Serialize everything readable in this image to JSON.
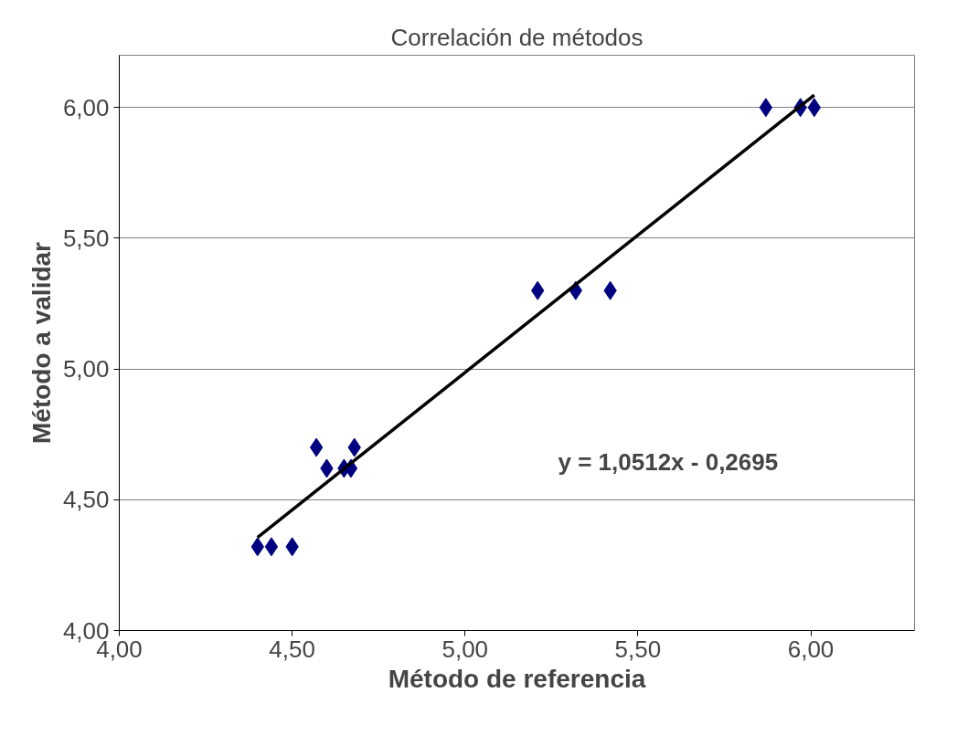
{
  "chart_data": {
    "type": "scatter",
    "title": "Correlación de métodos",
    "xlabel": "Método de referencia",
    "ylabel": "Método a validar",
    "annotations": [
      "y = 1,0512x - 0,2695"
    ],
    "series": [
      {
        "color": "#000080",
        "marker": "diamond",
        "x": [
          4.4,
          4.44,
          4.5,
          4.57,
          4.6,
          4.65,
          4.67,
          4.68,
          5.21,
          5.32,
          5.42,
          5.87,
          5.97,
          6.01
        ],
        "values": [
          4.32,
          4.32,
          4.32,
          4.7,
          4.62,
          4.62,
          4.62,
          4.7,
          5.3,
          5.3,
          5.3,
          6.0,
          6.0,
          6.0
        ]
      },
      {
        "type": "line",
        "color": "#000000",
        "marker": "none",
        "line_style": "solid",
        "x": [
          4.4,
          6.01
        ],
        "values": [
          4.356,
          6.048
        ]
      }
    ],
    "xlim": [
      4.0,
      6.3
    ],
    "ylim": [
      4.0,
      6.2
    ],
    "xticks": [
      {
        "value": 4.0,
        "label": "4,00"
      },
      {
        "value": 4.5,
        "label": "4,50"
      },
      {
        "value": 5.0,
        "label": "5,00"
      },
      {
        "value": 5.5,
        "label": "5,50"
      },
      {
        "value": 6.0,
        "label": "6,00"
      }
    ],
    "yticks": [
      {
        "value": 4.0,
        "label": "4,00"
      },
      {
        "value": 4.5,
        "label": "4,50"
      },
      {
        "value": 5.0,
        "label": "5,00"
      },
      {
        "value": 5.5,
        "label": "5,50"
      },
      {
        "value": 6.0,
        "label": "6,00"
      }
    ],
    "grid": "y"
  }
}
